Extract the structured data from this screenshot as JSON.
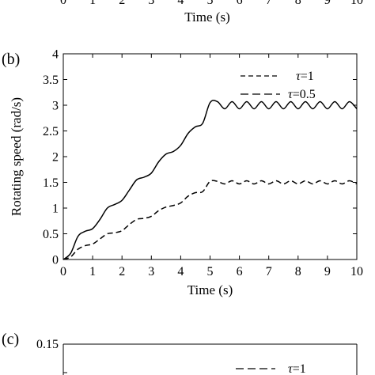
{
  "top_strip": {
    "x_tick_labels": [
      "0",
      "1",
      "2",
      "3",
      "4",
      "5",
      "6",
      "7",
      "8",
      "9",
      "10"
    ],
    "xlabel": "Time (s)"
  },
  "panel_b": {
    "label": "(b)",
    "legend": [
      {
        "symbol": "τ",
        "value": "=1",
        "style": "dashed-short"
      },
      {
        "symbol": "τ",
        "value": "=0.5",
        "style": "dashed-long"
      }
    ]
  },
  "panel_c": {
    "label": "(c)",
    "y_tick_top": "0.15",
    "legend": [
      {
        "symbol": "τ",
        "value": "=1",
        "style": "dashed-long"
      }
    ]
  },
  "chart_data": [
    {
      "type": "line",
      "xlabel": "Time (s)",
      "ylabel": "Rotating speed (rad/s)",
      "xlim": [
        0,
        10
      ],
      "ylim": [
        0,
        4
      ],
      "x_ticks": [
        0,
        1,
        2,
        3,
        4,
        5,
        6,
        7,
        8,
        9,
        10
      ],
      "y_ticks": [
        0,
        0.5,
        1,
        1.5,
        2,
        2.5,
        3,
        3.5,
        4
      ],
      "x_tick_labels": [
        "0",
        "1",
        "2",
        "3",
        "4",
        "5",
        "6",
        "7",
        "8",
        "9",
        "10"
      ],
      "y_tick_labels": [
        "0",
        "0.5",
        "1",
        "1.5",
        "2",
        "2.5",
        "3",
        "3.5",
        "4"
      ],
      "grid": false,
      "legend_position": "top-right",
      "series": [
        {
          "line_style": "solid",
          "x": [
            0,
            0.25,
            0.5,
            0.75,
            1,
            1.25,
            1.5,
            1.75,
            2,
            2.25,
            2.5,
            2.75,
            3,
            3.25,
            3.5,
            3.75,
            4,
            4.25,
            4.5,
            4.75,
            5,
            5.25,
            5.5,
            5.75,
            6,
            6.25,
            6.5,
            6.75,
            7,
            7.25,
            7.5,
            7.75,
            8,
            8.25,
            8.5,
            8.75,
            9,
            9.25,
            9.5,
            9.75,
            10
          ],
          "y": [
            0,
            0.12,
            0.45,
            0.55,
            0.6,
            0.78,
            1.0,
            1.07,
            1.15,
            1.35,
            1.55,
            1.6,
            1.68,
            1.9,
            2.05,
            2.1,
            2.22,
            2.45,
            2.58,
            2.65,
            3.05,
            3.07,
            2.93,
            3.07,
            2.93,
            3.07,
            2.93,
            3.07,
            2.93,
            3.07,
            2.93,
            3.07,
            2.93,
            3.07,
            2.93,
            3.07,
            2.93,
            3.07,
            2.93,
            3.07,
            2.93
          ]
        },
        {
          "line_style": "dashed",
          "x": [
            0,
            0.25,
            0.5,
            0.75,
            1,
            1.25,
            1.5,
            1.75,
            2,
            2.25,
            2.5,
            2.75,
            3,
            3.25,
            3.5,
            3.75,
            4,
            4.25,
            4.5,
            4.75,
            5,
            5.25,
            5.5,
            5.75,
            6,
            6.25,
            6.5,
            6.75,
            7,
            7.25,
            7.5,
            7.75,
            8,
            8.25,
            8.5,
            8.75,
            9,
            9.25,
            9.5,
            9.75,
            10
          ],
          "y": [
            0,
            0.05,
            0.2,
            0.27,
            0.3,
            0.4,
            0.5,
            0.52,
            0.56,
            0.68,
            0.78,
            0.8,
            0.84,
            0.95,
            1.02,
            1.05,
            1.1,
            1.23,
            1.3,
            1.32,
            1.52,
            1.52,
            1.47,
            1.53,
            1.47,
            1.53,
            1.47,
            1.53,
            1.47,
            1.53,
            1.47,
            1.53,
            1.47,
            1.53,
            1.47,
            1.53,
            1.47,
            1.53,
            1.47,
            1.53,
            1.47
          ]
        }
      ]
    }
  ]
}
